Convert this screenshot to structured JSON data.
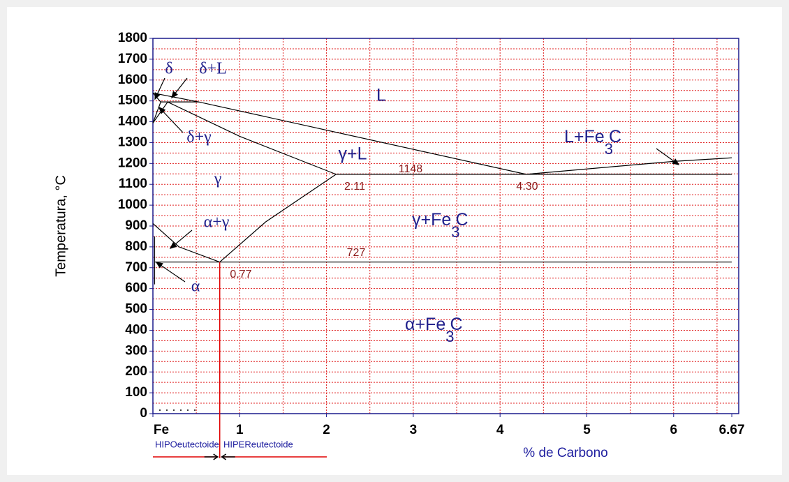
{
  "chart_data": {
    "type": "phase-diagram",
    "ylabel": "Temperatura, °C",
    "xlabel": "% de Carbono",
    "xlim": [
      0,
      6.75
    ],
    "ylim": [
      0,
      1800
    ],
    "xticks": [
      {
        "value": 0,
        "label": "Fe"
      },
      1,
      2,
      3,
      4,
      5,
      6,
      6.67
    ],
    "yticks": [
      0,
      100,
      200,
      300,
      400,
      500,
      600,
      700,
      800,
      900,
      1000,
      1100,
      1200,
      1300,
      1400,
      1500,
      1600,
      1700,
      1800
    ],
    "xgrid": [
      0.5,
      1,
      1.5,
      2,
      2.5,
      3,
      3.5,
      4,
      4.5,
      5,
      5.5,
      6,
      6.5
    ],
    "ygrid": [
      50,
      100,
      150,
      200,
      250,
      300,
      350,
      400,
      450,
      500,
      550,
      600,
      650,
      700,
      750,
      800,
      850,
      900,
      950,
      1000,
      1050,
      1100,
      1150,
      1200,
      1250,
      1300,
      1350,
      1400,
      1450,
      1500,
      1550,
      1600,
      1650,
      1700,
      1750
    ],
    "grid": true,
    "grid_color": "#e02020",
    "line_color": "#000000",
    "boundaries": [
      {
        "x": [
          0,
          0.53,
          4.3
        ],
        "y": [
          1538,
          1495,
          1148
        ]
      },
      {
        "x": [
          4.3,
          6.0,
          6.67
        ],
        "y": [
          1148,
          1210,
          1227
        ]
      },
      {
        "x": [
          0,
          0.09
        ],
        "y": [
          1538,
          1495
        ]
      },
      {
        "x": [
          0.09,
          0.53
        ],
        "y": [
          1495,
          1495
        ]
      },
      {
        "x": [
          0.09,
          0
        ],
        "y": [
          1495,
          1394
        ]
      },
      {
        "x": [
          0.17,
          0
        ],
        "y": [
          1495,
          1394
        ]
      },
      {
        "x": [
          0.17,
          1.0,
          2.11
        ],
        "y": [
          1495,
          1330,
          1148
        ]
      },
      {
        "x": [
          2.11,
          6.67
        ],
        "y": [
          1148,
          1148
        ]
      },
      {
        "x": [
          0.77,
          1.3,
          2.11
        ],
        "y": [
          727,
          920,
          1148
        ]
      },
      {
        "x": [
          0,
          0.3,
          0.77
        ],
        "y": [
          912,
          800,
          727
        ]
      },
      {
        "x": [
          0.02,
          6.67
        ],
        "y": [
          727,
          727
        ]
      },
      {
        "x": [
          0.02,
          0.02
        ],
        "y": [
          620,
          850
        ]
      }
    ],
    "composition_line": {
      "x": [
        0.77,
        0.77
      ],
      "y": [
        727,
        0
      ],
      "color": "#e00000"
    },
    "phase_labels": [
      "δ",
      "δ+L",
      "L",
      "δ+γ",
      "γ",
      "γ+L",
      "α+γ",
      "α"
    ],
    "compound_labels": [
      [
        "L+Fe",
        "3",
        "C"
      ],
      [
        "γ+Fe",
        "3",
        "C"
      ],
      [
        "α+Fe",
        "3",
        "C"
      ]
    ],
    "point_labels": [
      "1148",
      "2.11",
      "4.30",
      "727",
      "0.77"
    ],
    "region_notes": [
      "HIPOeutectoide",
      "HIPEReutectoide"
    ]
  }
}
